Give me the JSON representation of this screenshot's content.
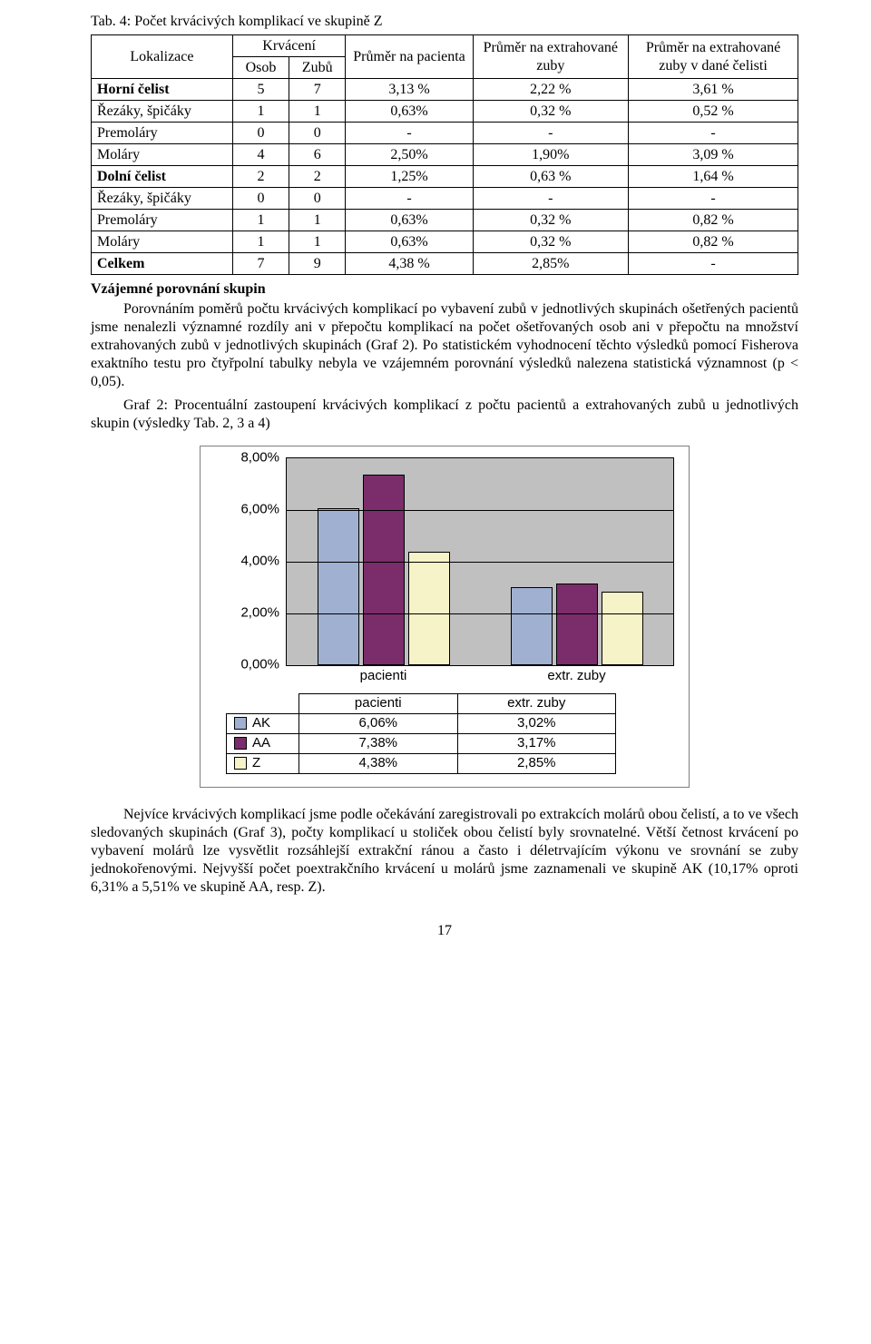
{
  "table": {
    "caption": "Tab. 4: Počet krvácivých komplikací ve skupině Z",
    "header": {
      "lokalizace": "Lokalizace",
      "krvaceni": "Krvácení",
      "osob": "Osob",
      "zubu": "Zubů",
      "col3": "Průměr na pacienta",
      "col4": "Průměr na extrahované zuby",
      "col5": "Průměr na extrahované zuby v dané čelisti"
    },
    "rows": [
      {
        "label": "Horní čelist",
        "bold": true,
        "c1": "5",
        "c2": "7",
        "c3": "3,13 %",
        "c4": "2,22 %",
        "c5": "3,61 %"
      },
      {
        "label": "Řezáky, špičáky",
        "bold": false,
        "c1": "1",
        "c2": "1",
        "c3": "0,63%",
        "c4": "0,32 %",
        "c5": "0,52 %"
      },
      {
        "label": "Premoláry",
        "bold": false,
        "c1": "0",
        "c2": "0",
        "c3": "-",
        "c4": "-",
        "c5": "-"
      },
      {
        "label": "Moláry",
        "bold": false,
        "c1": "4",
        "c2": "6",
        "c3": "2,50%",
        "c4": "1,90%",
        "c5": "3,09 %"
      },
      {
        "label": "Dolní čelist",
        "bold": true,
        "c1": "2",
        "c2": "2",
        "c3": "1,25%",
        "c4": "0,63 %",
        "c5": "1,64 %"
      },
      {
        "label": "Řezáky, špičáky",
        "bold": false,
        "c1": "0",
        "c2": "0",
        "c3": "-",
        "c4": "-",
        "c5": "-"
      },
      {
        "label": "Premoláry",
        "bold": false,
        "c1": "1",
        "c2": "1",
        "c3": "0,63%",
        "c4": "0,32 %",
        "c5": "0,82 %"
      },
      {
        "label": "Moláry",
        "bold": false,
        "c1": "1",
        "c2": "1",
        "c3": "0,63%",
        "c4": "0,32 %",
        "c5": "0,82 %"
      },
      {
        "label": "Celkem",
        "bold": true,
        "c1": "7",
        "c2": "9",
        "c3": "4,38 %",
        "c4": "2,85%",
        "c5": "-"
      }
    ]
  },
  "headings": {
    "vzajemne": "Vzájemné porovnání skupin"
  },
  "paragraphs": {
    "p1": "Porovnáním poměrů počtu krvácivých komplikací po vybavení zubů v jednotlivých skupinách ošetřených pacientů jsme nenalezli významné rozdíly ani v přepočtu komplikací na počet ošetřovaných osob ani v přepočtu na množství extrahovaných zubů v jednotlivých skupinách (Graf 2). Po statistickém vyhodnocení těchto výsledků pomocí Fisherova exaktního testu pro čtyřpolní tabulky nebyla ve vzájemném porovnání výsledků nalezena statistická významnost (p < 0,05).",
    "p2": "Graf 2: Procentuální zastoupení krvácivých komplikací z počtu pacientů a extrahovaných zubů u jednotlivých skupin (výsledky Tab. 2, 3 a 4)",
    "p3": "Nejvíce krvácivých komplikací jsme podle očekávání zaregistrovali po extrakcích molárů obou čelistí, a to ve všech sledovaných skupinách (Graf 3), počty komplikací u stoliček obou čelistí byly srovnatelné. Větší četnost krvácení po vybavení molárů lze vysvětlit rozsáhlejší extrakční ránou a často i déletrvajícím výkonu ve srovnání se zuby jednokořenovými. Nejvyšší počet poextrakčního krvácení u molárů jsme zaznamenali ve skupině AK (10,17% oproti 6,31% a 5,51% ve skupině AA, resp. Z)."
  },
  "chart": {
    "type": "bar",
    "ymax": 8.0,
    "ytick_step": 2.0,
    "yticks": [
      "8,00%",
      "6,00%",
      "4,00%",
      "2,00%",
      "0,00%"
    ],
    "plot_bg": "#c0c0c0",
    "grid_color": "#000000",
    "categories": [
      "pacienti",
      "extr. zuby"
    ],
    "series": [
      {
        "name": "AK",
        "color": "#a0b0d0",
        "values": [
          6.06,
          3.02
        ],
        "labels": [
          "6,06%",
          "3,02%"
        ]
      },
      {
        "name": "AA",
        "color": "#7a2d6a",
        "values": [
          7.38,
          3.17
        ],
        "labels": [
          "7,38%",
          "3,17%"
        ]
      },
      {
        "name": "Z",
        "color": "#f7f3c8",
        "values": [
          4.38,
          2.85
        ],
        "labels": [
          "4,38%",
          "2,85%"
        ]
      }
    ]
  },
  "pagenum": "17"
}
